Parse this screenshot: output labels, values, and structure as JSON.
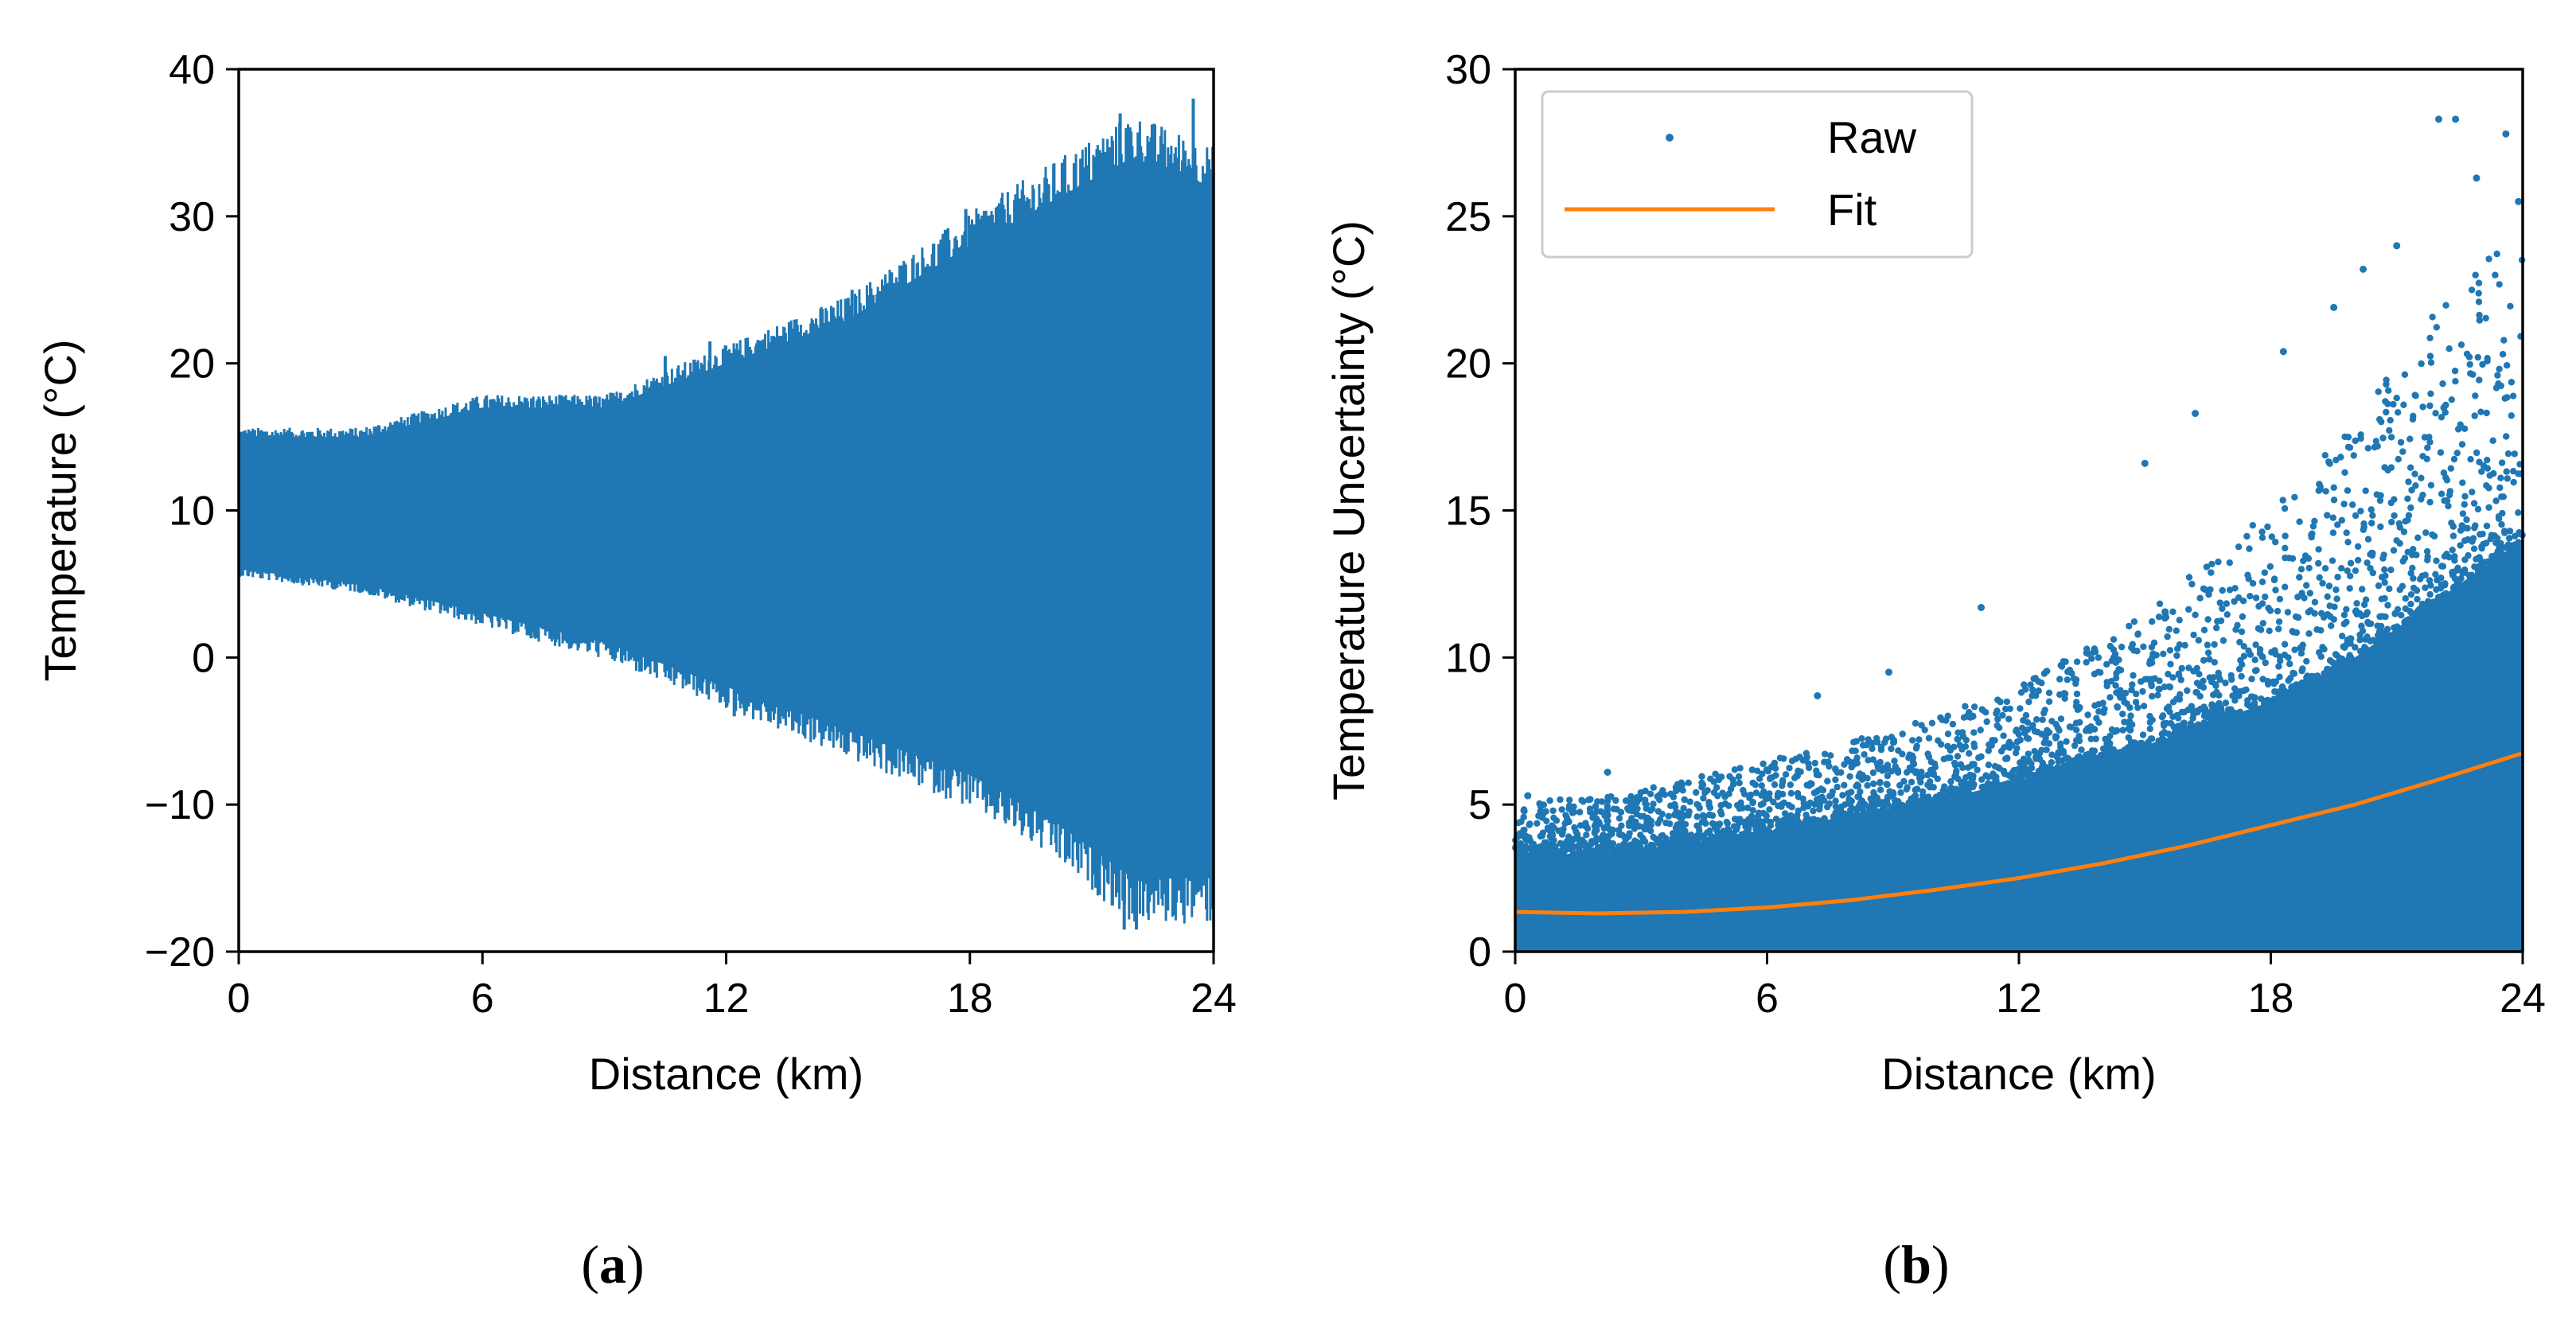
{
  "chart_data": [
    {
      "id": "a",
      "type": "line",
      "caption": "a",
      "xlabel": "Distance (km)",
      "ylabel": "Temperature (°C)",
      "xlim": [
        0,
        24
      ],
      "ylim": [
        -20,
        40
      ],
      "xticks": [
        0,
        6,
        12,
        18,
        24
      ],
      "yticks": [
        -20,
        -10,
        0,
        10,
        20,
        30,
        40
      ],
      "xtick_labels": [
        "0",
        "6",
        "12",
        "18",
        "24"
      ],
      "ytick_labels": [
        "−20",
        "−10",
        "0",
        "10",
        "20",
        "30",
        "40"
      ],
      "grid": false,
      "colors": {
        "series": "#1f77b4"
      },
      "series": [
        {
          "style": "line",
          "mean": 10,
          "envelope": {
            "x": [
              0,
              3,
              6,
              9,
              12,
              15,
              18,
              20,
              22,
              24
            ],
            "upper": [
              15,
              15,
              17,
              17,
              20,
              23,
              28,
              31,
              34,
              32
            ],
            "lower": [
              6,
              5,
              3,
              1,
              -2,
              -5,
              -8,
              -11,
              -15,
              -15
            ]
          },
          "spikes": [
            {
              "x": 0.3,
              "y": 15.4
            },
            {
              "x": 9.4,
              "y": 18
            },
            {
              "x": 10.5,
              "y": 20.5
            },
            {
              "x": 11.6,
              "y": 21.5
            },
            {
              "x": 15.1,
              "y": 25
            },
            {
              "x": 17.9,
              "y": 30.5
            },
            {
              "x": 19.6,
              "y": 30
            },
            {
              "x": 21.7,
              "y": 37
            },
            {
              "x": 22.3,
              "y": 33.5
            },
            {
              "x": 23.5,
              "y": 38
            },
            {
              "x": 7.2,
              "y": 1.3
            },
            {
              "x": 12.2,
              "y": -4
            },
            {
              "x": 16.0,
              "y": -7
            },
            {
              "x": 19.2,
              "y": -8.5
            },
            {
              "x": 21.2,
              "y": -14
            },
            {
              "x": 21.8,
              "y": -18.5
            },
            {
              "x": 22.1,
              "y": -18.5
            },
            {
              "x": 23.8,
              "y": -15.5
            }
          ]
        }
      ]
    },
    {
      "id": "b",
      "type": "scatter",
      "caption": "b",
      "xlabel": "Distance (km)",
      "ylabel": "Temperature Uncertainty (°C)",
      "xlim": [
        0,
        24
      ],
      "ylim": [
        0,
        30
      ],
      "xticks": [
        0,
        6,
        12,
        18,
        24
      ],
      "yticks": [
        0,
        5,
        10,
        15,
        20,
        25,
        30
      ],
      "xtick_labels": [
        "0",
        "6",
        "12",
        "18",
        "24"
      ],
      "ytick_labels": [
        "0",
        "5",
        "10",
        "15",
        "20",
        "25",
        "30"
      ],
      "grid": false,
      "legend": {
        "position": "top-left",
        "entries": [
          "Raw",
          "Fit"
        ]
      },
      "colors": {
        "raw": "#1f77b4",
        "fit": "#ff7f0e"
      },
      "series": [
        {
          "name": "Raw",
          "style": "points",
          "dense_band": {
            "x": [
              0,
              3,
              6,
              9,
              12,
              15,
              18,
              20,
              22,
              24
            ],
            "upper": [
              3.2,
              3.5,
              4.0,
              4.8,
              5.8,
              7.0,
              8.5,
              10.0,
              12.0,
              14.0
            ]
          },
          "scatter_envelope": {
            "x": [
              0,
              3,
              6,
              9,
              12,
              15,
              18,
              20,
              22,
              24
            ],
            "upper": [
              5.0,
              5.5,
              6.5,
              7.5,
              9.0,
              11.5,
              15.0,
              18.0,
              22.0,
              25.0
            ]
          },
          "outliers": [
            {
              "x": 0.3,
              "y": 5.3
            },
            {
              "x": 2.2,
              "y": 6.1
            },
            {
              "x": 7.2,
              "y": 8.7
            },
            {
              "x": 8.9,
              "y": 9.5
            },
            {
              "x": 11.1,
              "y": 11.7
            },
            {
              "x": 15.0,
              "y": 16.6
            },
            {
              "x": 16.2,
              "y": 18.3
            },
            {
              "x": 18.3,
              "y": 20.4
            },
            {
              "x": 19.5,
              "y": 21.9
            },
            {
              "x": 20.2,
              "y": 23.2
            },
            {
              "x": 22.0,
              "y": 28.3
            },
            {
              "x": 22.4,
              "y": 28.3
            },
            {
              "x": 23.6,
              "y": 27.8
            },
            {
              "x": 23.9,
              "y": 25.5
            },
            {
              "x": 21.0,
              "y": 24.0
            },
            {
              "x": 22.9,
              "y": 26.3
            }
          ]
        },
        {
          "name": "Fit",
          "style": "line",
          "x": [
            0,
            2,
            4,
            6,
            8,
            10,
            12,
            14,
            16,
            18,
            20,
            22,
            24
          ],
          "y": [
            1.35,
            1.3,
            1.35,
            1.5,
            1.75,
            2.1,
            2.5,
            3.0,
            3.6,
            4.3,
            5.0,
            5.85,
            6.75
          ]
        }
      ]
    }
  ]
}
